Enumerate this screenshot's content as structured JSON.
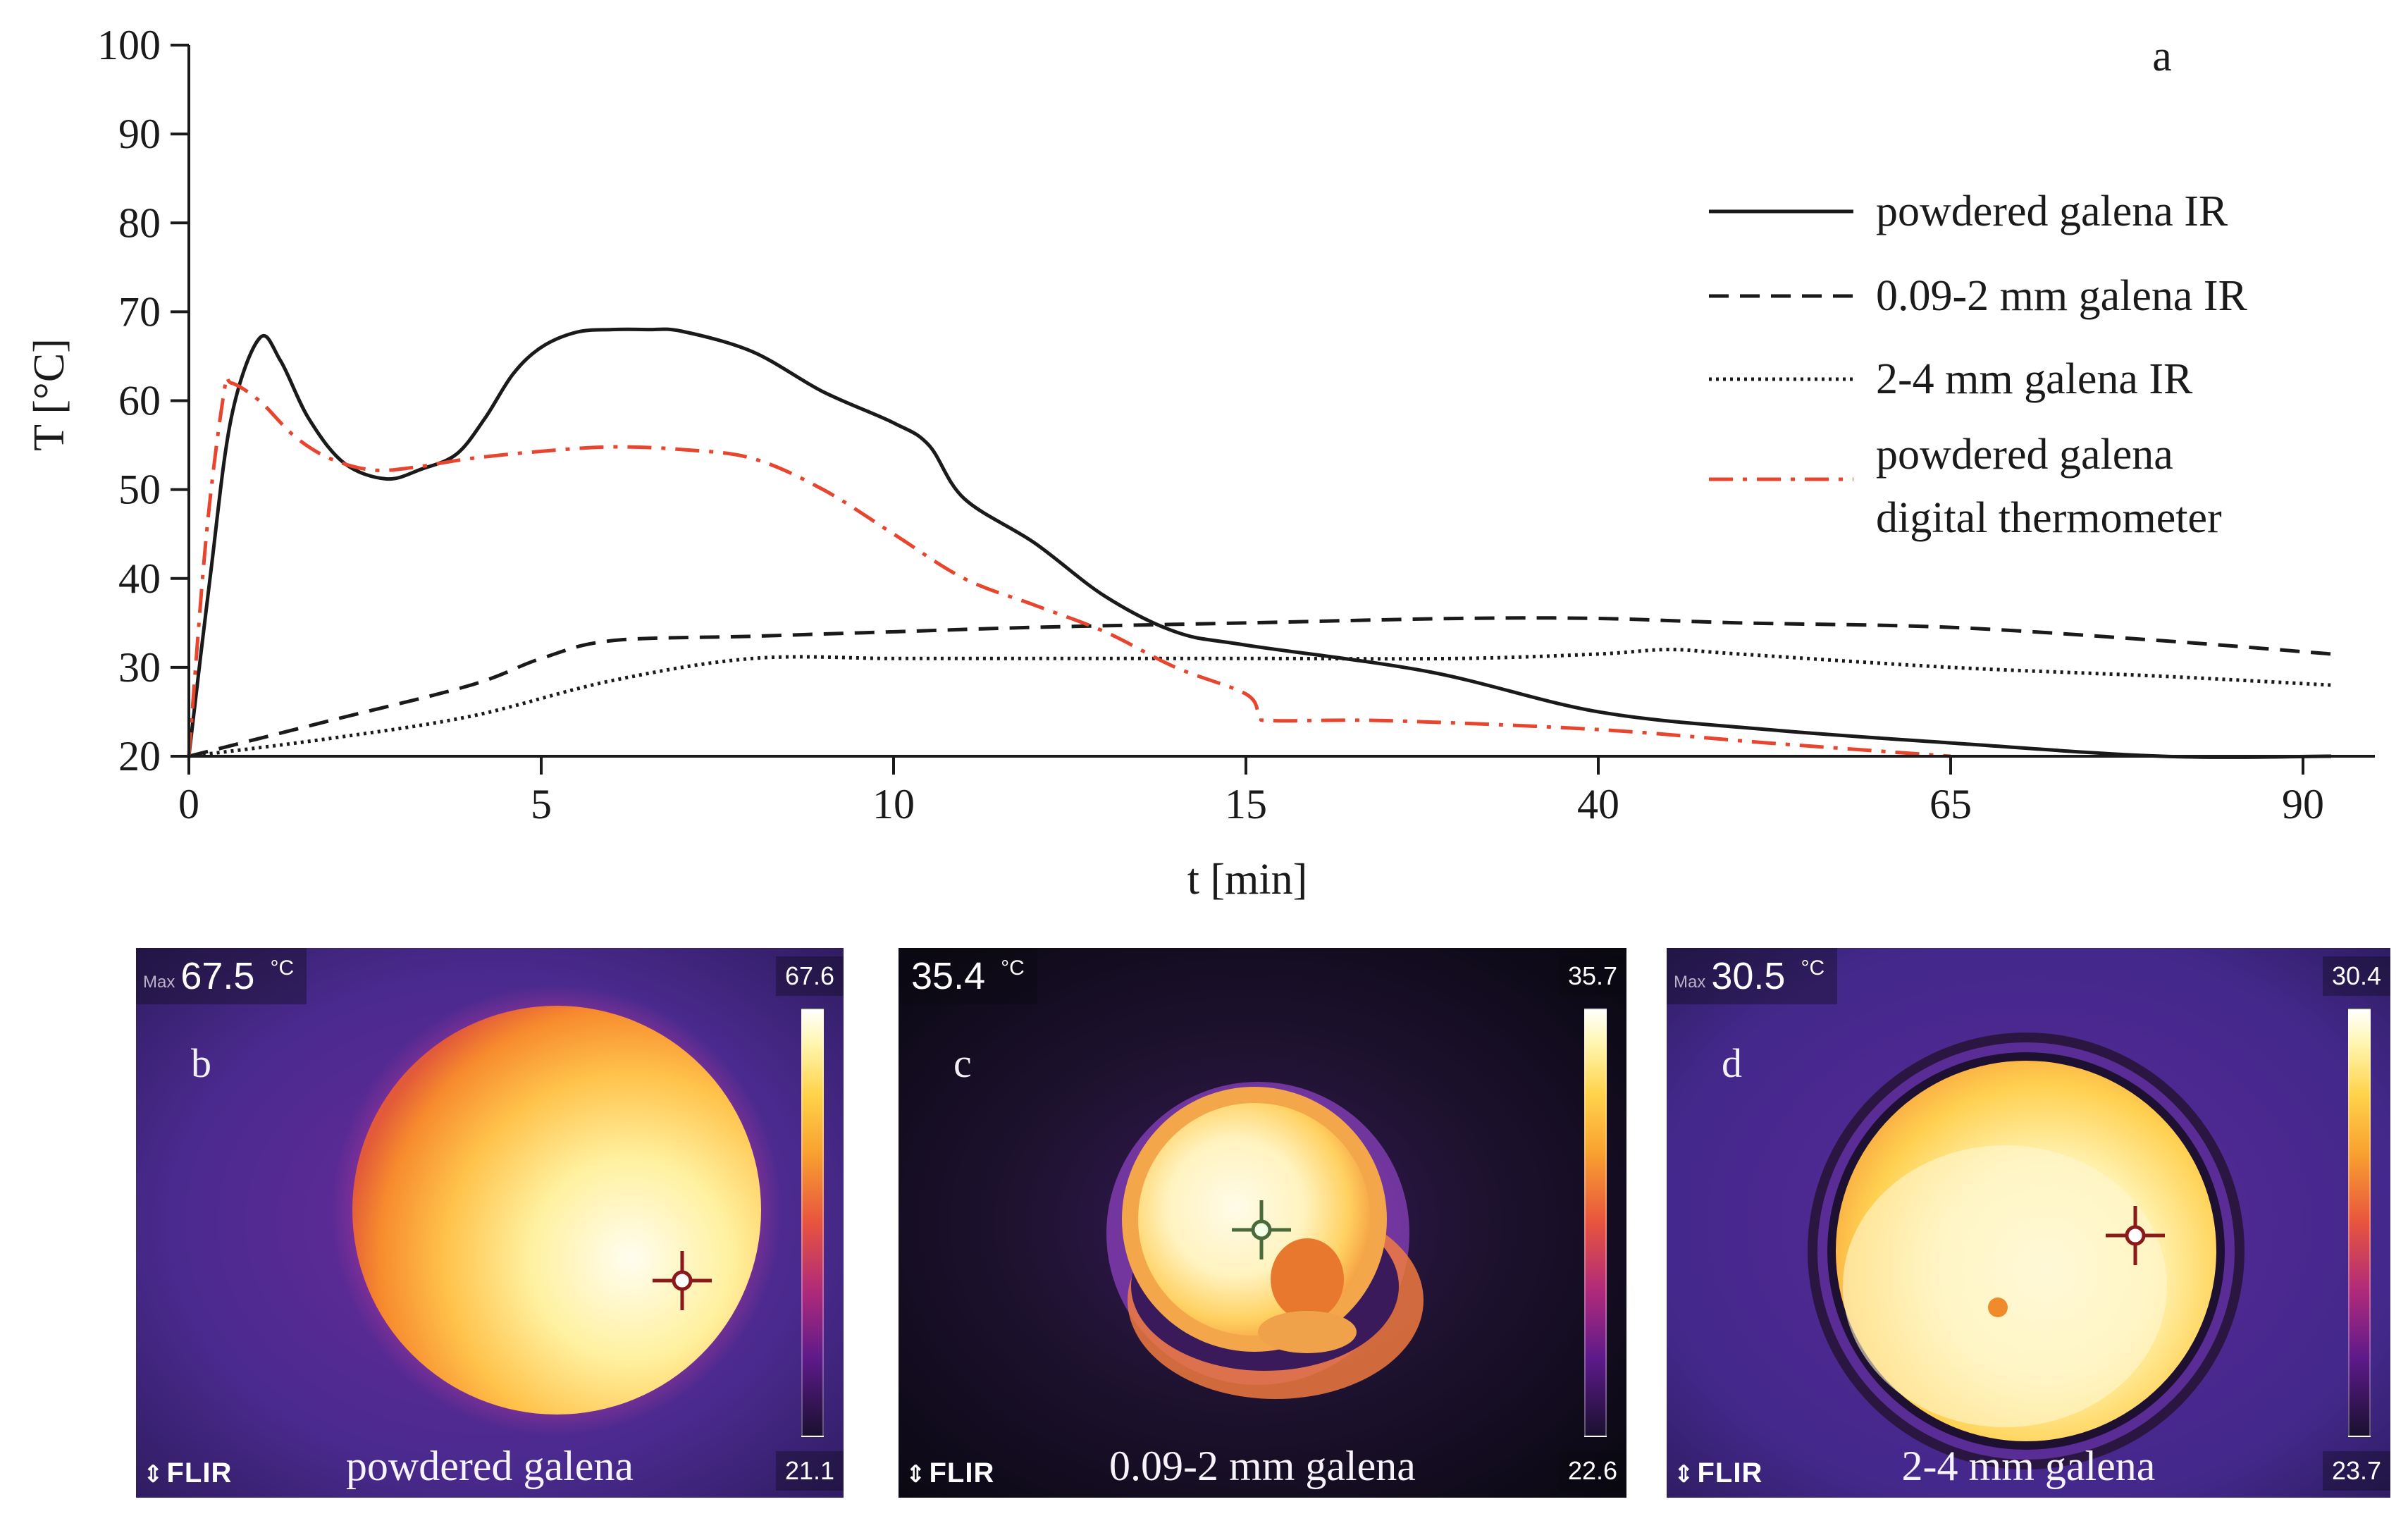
{
  "chart_data": {
    "type": "line",
    "panel_label": "a",
    "xlabel": "t [min]",
    "ylabel": "T [°C]",
    "ylim": [
      20,
      100
    ],
    "yticks": [
      20,
      30,
      40,
      50,
      60,
      70,
      80,
      90,
      100
    ],
    "xticks": [
      0,
      5,
      10,
      15,
      40,
      65,
      90
    ],
    "x_axis_note": "piecewise axis: linear 0–15 min, then compressed 15–90 min",
    "legend_position": "top-right",
    "series": [
      {
        "name": "powdered galena IR",
        "style": "solid",
        "color": "#1a1a1a",
        "points": [
          [
            0,
            20
          ],
          [
            0.3,
            40
          ],
          [
            0.6,
            58
          ],
          [
            1,
            67
          ],
          [
            1.3,
            64.5
          ],
          [
            1.7,
            58
          ],
          [
            2.2,
            53
          ],
          [
            2.8,
            51.2
          ],
          [
            3.3,
            52.3
          ],
          [
            3.8,
            54
          ],
          [
            4.2,
            58
          ],
          [
            4.6,
            63
          ],
          [
            5,
            66
          ],
          [
            5.5,
            67.7
          ],
          [
            6,
            68
          ],
          [
            6.5,
            68
          ],
          [
            7,
            67.8
          ],
          [
            8,
            65.5
          ],
          [
            9,
            61
          ],
          [
            10,
            57.5
          ],
          [
            10.5,
            55
          ],
          [
            11,
            49
          ],
          [
            12,
            44
          ],
          [
            13,
            38
          ],
          [
            14,
            34
          ],
          [
            15,
            32.5
          ],
          [
            28,
            29.5
          ],
          [
            40,
            25
          ],
          [
            52,
            23
          ],
          [
            65,
            21.5
          ],
          [
            80,
            20
          ],
          [
            92,
            20
          ]
        ]
      },
      {
        "name": "0.09-2 mm galena IR",
        "style": "dashed",
        "color": "#1a1a1a",
        "points": [
          [
            0,
            20
          ],
          [
            2,
            24
          ],
          [
            4,
            28
          ],
          [
            5,
            31
          ],
          [
            6,
            33
          ],
          [
            8,
            33.5
          ],
          [
            10,
            34
          ],
          [
            12,
            34.5
          ],
          [
            15,
            35
          ],
          [
            30,
            35.5
          ],
          [
            40,
            35.5
          ],
          [
            50,
            35
          ],
          [
            65,
            34.5
          ],
          [
            80,
            33
          ],
          [
            92,
            31.5
          ]
        ]
      },
      {
        "name": "2-4 mm galena IR",
        "style": "dotted",
        "color": "#1a1a1a",
        "points": [
          [
            0,
            20
          ],
          [
            2,
            22
          ],
          [
            4,
            24.5
          ],
          [
            6,
            28.5
          ],
          [
            8,
            31
          ],
          [
            10,
            31
          ],
          [
            12,
            31
          ],
          [
            15,
            31
          ],
          [
            30,
            31
          ],
          [
            40,
            31.5
          ],
          [
            45,
            32
          ],
          [
            50,
            31.5
          ],
          [
            65,
            30
          ],
          [
            80,
            29
          ],
          [
            92,
            28
          ]
        ]
      },
      {
        "name": "powdered galena digital thermometer",
        "style": "dashdot",
        "color": "#e8452e",
        "points": [
          [
            0,
            20
          ],
          [
            0.25,
            45
          ],
          [
            0.5,
            61
          ],
          [
            0.6,
            62
          ],
          [
            1,
            60
          ],
          [
            1.5,
            56
          ],
          [
            2,
            53.5
          ],
          [
            2.6,
            52.2
          ],
          [
            3.2,
            52.5
          ],
          [
            4,
            53.5
          ],
          [
            5,
            54.3
          ],
          [
            6,
            54.8
          ],
          [
            7,
            54.5
          ],
          [
            8,
            53.5
          ],
          [
            9,
            50
          ],
          [
            10,
            45
          ],
          [
            11,
            40
          ],
          [
            12,
            37
          ],
          [
            13,
            34
          ],
          [
            14,
            30
          ],
          [
            15,
            27
          ],
          [
            16,
            24.5
          ],
          [
            17,
            24
          ],
          [
            25,
            24
          ],
          [
            40,
            23
          ],
          [
            52,
            21.5
          ],
          [
            65,
            20
          ]
        ]
      }
    ],
    "legend_entries": [
      "powdered galena IR",
      "0.09-2 mm galena IR",
      "2-4 mm galena IR",
      "powdered galena",
      "digital thermometer"
    ]
  },
  "thermal_images": [
    {
      "letter": "b",
      "max_prefix": "Max",
      "max_value": "67.5",
      "unit": "°C",
      "scale_max": "67.6",
      "scale_min": "21.1",
      "caption": "powdered galena",
      "brand": "FLIR"
    },
    {
      "letter": "c",
      "max_prefix": "",
      "max_value": "35.4",
      "unit": "°C",
      "scale_max": "35.7",
      "scale_min": "22.6",
      "caption": "0.09-2 mm galena",
      "brand": "FLIR"
    },
    {
      "letter": "d",
      "max_prefix": "Max",
      "max_value": "30.5",
      "unit": "°C",
      "scale_max": "30.4",
      "scale_min": "23.7",
      "caption": "2-4 mm galena",
      "brand": "FLIR"
    }
  ]
}
